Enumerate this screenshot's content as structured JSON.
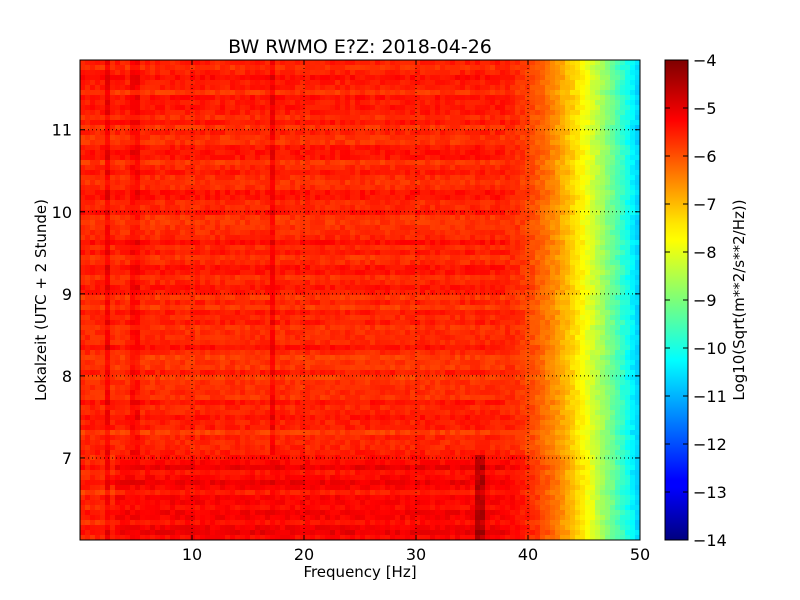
{
  "chart_data": {
    "type": "heatmap",
    "title": "BW RWMO E?Z: 2018-04-26",
    "xlabel": "Frequency [Hz]",
    "ylabel": "Lokalzeit (UTC + 2 Stunde)",
    "xlim": [
      0,
      50
    ],
    "ylim": [
      11.85,
      6.0
    ],
    "x_ticks": [
      "10",
      "20",
      "30",
      "40",
      "50"
    ],
    "y_ticks": [
      "7",
      "8",
      "9",
      "10",
      "11"
    ],
    "grid": true,
    "colormap": "jet",
    "colorbar": {
      "label": "Log10(Sqrt(m**2/s**2/Hz))",
      "range": [
        -14,
        -4
      ],
      "ticks": [
        "−4",
        "−5",
        "−6",
        "−7",
        "−8",
        "−9",
        "−10",
        "−11",
        "−12",
        "−13",
        "−14"
      ]
    },
    "field": {
      "low_freq_level": -5.6,
      "high_freq_level": -10.8,
      "rolloff_start_hz": 38,
      "rolloff_end_hz": 50,
      "before_7h_level_above_35hz": -5.0,
      "line_features": [
        {
          "freq_hz": 17.2,
          "level": -5.2
        },
        {
          "freq_hz": 35.6,
          "level": -4.6,
          "until_hour": 7.05
        },
        {
          "freq_hz": 2.5,
          "level": -5.2
        },
        {
          "freq_hz": 5.0,
          "level": -5.3
        }
      ]
    }
  }
}
